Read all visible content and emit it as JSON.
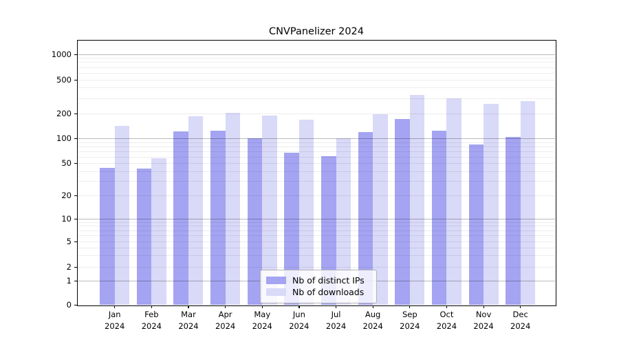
{
  "chart_data": {
    "type": "bar",
    "title": "CNVPanelizer 2024",
    "categories": [
      "Jan",
      "Feb",
      "Mar",
      "Apr",
      "May",
      "Jun",
      "Jul",
      "Aug",
      "Sep",
      "Oct",
      "Nov",
      "Dec"
    ],
    "x_tick_second_line": "2024",
    "series": [
      {
        "name": "Nb of distinct IPs",
        "color": "#a4a4f2",
        "values": [
          44,
          43,
          122,
          125,
          101,
          68,
          61,
          121,
          173,
          124,
          86,
          106
        ]
      },
      {
        "name": "Nb of downloads",
        "color": "#d9d9f8",
        "values": [
          143,
          58,
          185,
          202,
          190,
          168,
          102,
          197,
          331,
          300,
          261,
          278
        ]
      }
    ],
    "y_ticks": [
      0,
      1,
      2,
      5,
      10,
      20,
      50,
      100,
      200,
      500,
      1000
    ],
    "ylabel": "",
    "xlabel": "",
    "ylim": [
      0,
      1300
    ],
    "scale": "symlog",
    "grid": "horizontal major and minor gridlines",
    "legend_position": "lower center"
  }
}
